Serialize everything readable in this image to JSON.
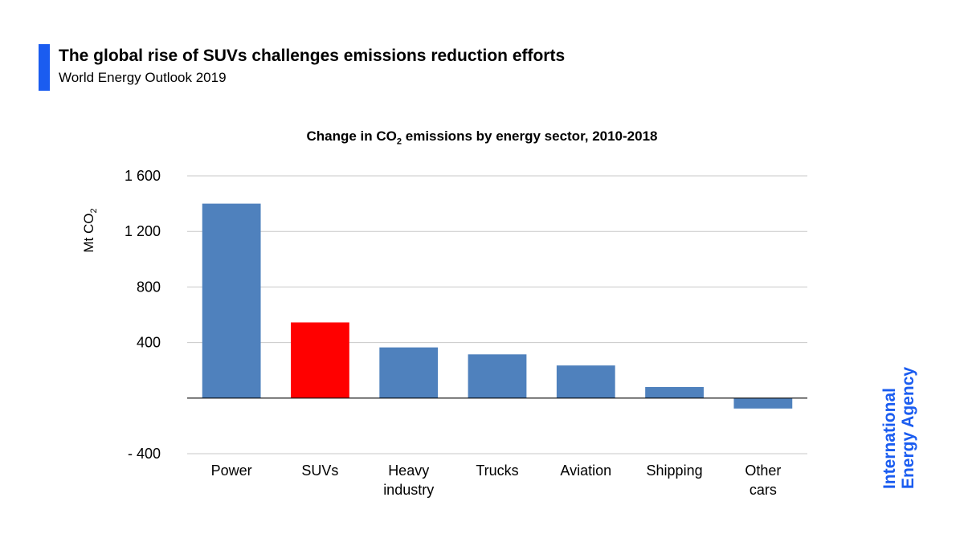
{
  "header": {
    "title": "The global rise of SUVs challenges emissions reduction efforts",
    "subtitle": "World Energy Outlook 2019",
    "accent_color": "#1a5cf0"
  },
  "brand": {
    "line1": "International",
    "line2": "Energy Agency",
    "color": "#1a5cf0"
  },
  "chart_data": {
    "type": "bar",
    "title_pre": "Change in CO",
    "title_sub": "2",
    "title_post": " emissions by energy sector, 2010-2018",
    "ylabel_pre": "Mt CO",
    "ylabel_sub": "2",
    "xlabel": "",
    "ylim": [
      -400,
      1600
    ],
    "yticks": [
      -400,
      0,
      400,
      800,
      1200,
      1600
    ],
    "ytick_labels": [
      "- 400",
      "",
      "400",
      "800",
      "1 200",
      "1 600"
    ],
    "categories": [
      [
        "Power"
      ],
      [
        "SUVs"
      ],
      [
        "Heavy",
        "industry"
      ],
      [
        "Trucks"
      ],
      [
        "Aviation"
      ],
      [
        "Shipping"
      ],
      [
        "Other",
        "cars"
      ]
    ],
    "values": [
      1400,
      545,
      365,
      315,
      235,
      80,
      -75
    ],
    "colors": [
      "#4f81bd",
      "#ff0000",
      "#4f81bd",
      "#4f81bd",
      "#4f81bd",
      "#4f81bd",
      "#4f81bd"
    ],
    "grid": true
  }
}
